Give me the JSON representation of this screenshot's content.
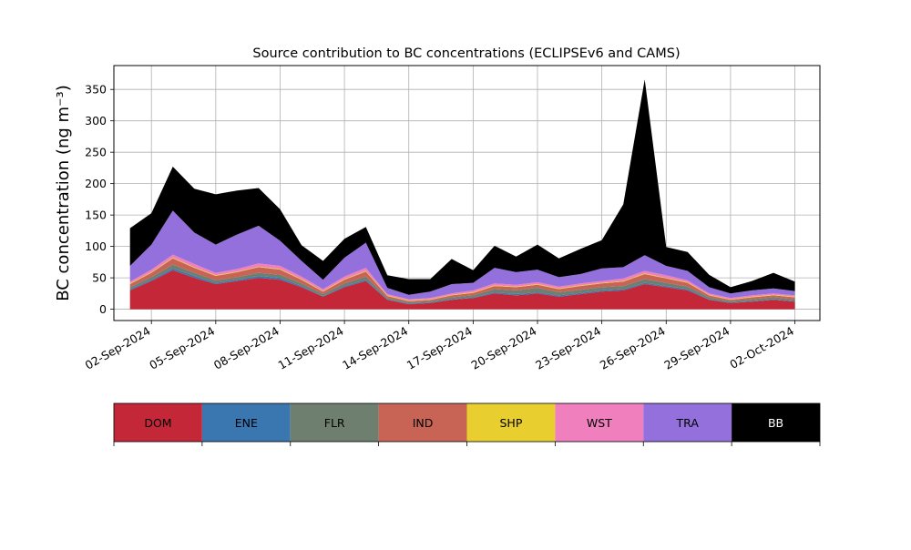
{
  "chart_data": {
    "type": "area",
    "stacked": true,
    "title": "Source contribution to BC concentrations (ECLIPSEv6 and CAMS)",
    "ylabel": "BC concentration (ng m⁻³)",
    "xlabel": "",
    "ylim": [
      -18,
      388
    ],
    "xlim": [
      "2024-08-31T06:00",
      "2024-10-03T04:00"
    ],
    "grid": true,
    "yticks": [
      0,
      50,
      100,
      150,
      200,
      250,
      300,
      350
    ],
    "xticks": [
      "02-Sep-2024",
      "05-Sep-2024",
      "08-Sep-2024",
      "11-Sep-2024",
      "14-Sep-2024",
      "17-Sep-2024",
      "20-Sep-2024",
      "23-Sep-2024",
      "26-Sep-2024",
      "29-Sep-2024",
      "02-Oct-2024"
    ],
    "legend_position": "bottom-colorbar",
    "legend": [
      "DOM",
      "ENE",
      "FLR",
      "IND",
      "SHP",
      "WST",
      "TRA",
      "BB"
    ],
    "colors": {
      "DOM": "#c42838",
      "ENE": "#3a76b0",
      "FLR": "#6f7f6f",
      "IND": "#c76456",
      "SHP": "#e8cf2f",
      "WST": "#f07fbe",
      "TRA": "#9370db",
      "BB": "#000000"
    },
    "x": [
      "2024-09-01",
      "2024-09-02",
      "2024-09-03",
      "2024-09-04",
      "2024-09-05",
      "2024-09-06",
      "2024-09-07",
      "2024-09-08",
      "2024-09-09",
      "2024-09-10",
      "2024-09-11",
      "2024-09-12",
      "2024-09-13",
      "2024-09-14",
      "2024-09-15",
      "2024-09-16",
      "2024-09-17",
      "2024-09-18",
      "2024-09-19",
      "2024-09-20",
      "2024-09-21",
      "2024-09-22",
      "2024-09-23",
      "2024-09-24",
      "2024-09-25",
      "2024-09-26",
      "2024-09-27",
      "2024-09-28",
      "2024-09-29",
      "2024-09-30",
      "2024-10-01",
      "2024-10-02"
    ],
    "series": [
      {
        "name": "DOM",
        "values": [
          30,
          45,
          62,
          50,
          40,
          45,
          50,
          47,
          35,
          20,
          35,
          45,
          15,
          8,
          10,
          15,
          18,
          25,
          22,
          25,
          20,
          24,
          28,
          30,
          40,
          35,
          30,
          15,
          10,
          12,
          15,
          12
        ]
      },
      {
        "name": "ENE",
        "values": [
          2,
          2,
          3,
          3,
          2,
          2,
          3,
          3,
          2,
          1,
          2,
          2,
          1,
          1,
          1,
          1,
          1,
          2,
          2,
          2,
          2,
          2,
          2,
          2,
          2,
          2,
          2,
          1,
          1,
          1,
          1,
          1
        ]
      },
      {
        "name": "FLR",
        "values": [
          3,
          4,
          6,
          5,
          4,
          4,
          5,
          5,
          4,
          3,
          4,
          5,
          2,
          2,
          2,
          3,
          3,
          5,
          6,
          7,
          5,
          5,
          5,
          5,
          6,
          5,
          4,
          3,
          2,
          3,
          3,
          3
        ]
      },
      {
        "name": "IND",
        "values": [
          5,
          7,
          10,
          8,
          7,
          8,
          9,
          8,
          6,
          4,
          6,
          8,
          3,
          2,
          2,
          3,
          4,
          5,
          5,
          5,
          5,
          6,
          6,
          7,
          8,
          7,
          6,
          3,
          2,
          3,
          3,
          3
        ]
      },
      {
        "name": "SHP",
        "values": [
          1,
          1,
          1,
          1,
          1,
          1,
          1,
          1,
          1,
          1,
          1,
          1,
          1,
          1,
          1,
          1,
          1,
          1,
          1,
          1,
          1,
          1,
          1,
          1,
          1,
          1,
          1,
          1,
          1,
          1,
          1,
          1
        ]
      },
      {
        "name": "WST",
        "values": [
          3,
          4,
          5,
          5,
          4,
          4,
          5,
          5,
          4,
          3,
          4,
          5,
          2,
          2,
          2,
          2,
          3,
          3,
          3,
          3,
          3,
          3,
          3,
          4,
          4,
          4,
          3,
          2,
          2,
          2,
          2,
          2
        ]
      },
      {
        "name": "TRA",
        "values": [
          25,
          40,
          70,
          50,
          45,
          55,
          60,
          40,
          25,
          15,
          30,
          40,
          10,
          7,
          10,
          15,
          12,
          25,
          20,
          20,
          15,
          15,
          20,
          18,
          25,
          15,
          15,
          10,
          7,
          8,
          8,
          7
        ]
      },
      {
        "name": "BB",
        "values": [
          60,
          50,
          70,
          70,
          80,
          70,
          60,
          50,
          25,
          30,
          30,
          25,
          20,
          25,
          20,
          40,
          20,
          35,
          25,
          40,
          30,
          40,
          45,
          100,
          280,
          30,
          30,
          20,
          10,
          15,
          25,
          15
        ]
      }
    ]
  }
}
